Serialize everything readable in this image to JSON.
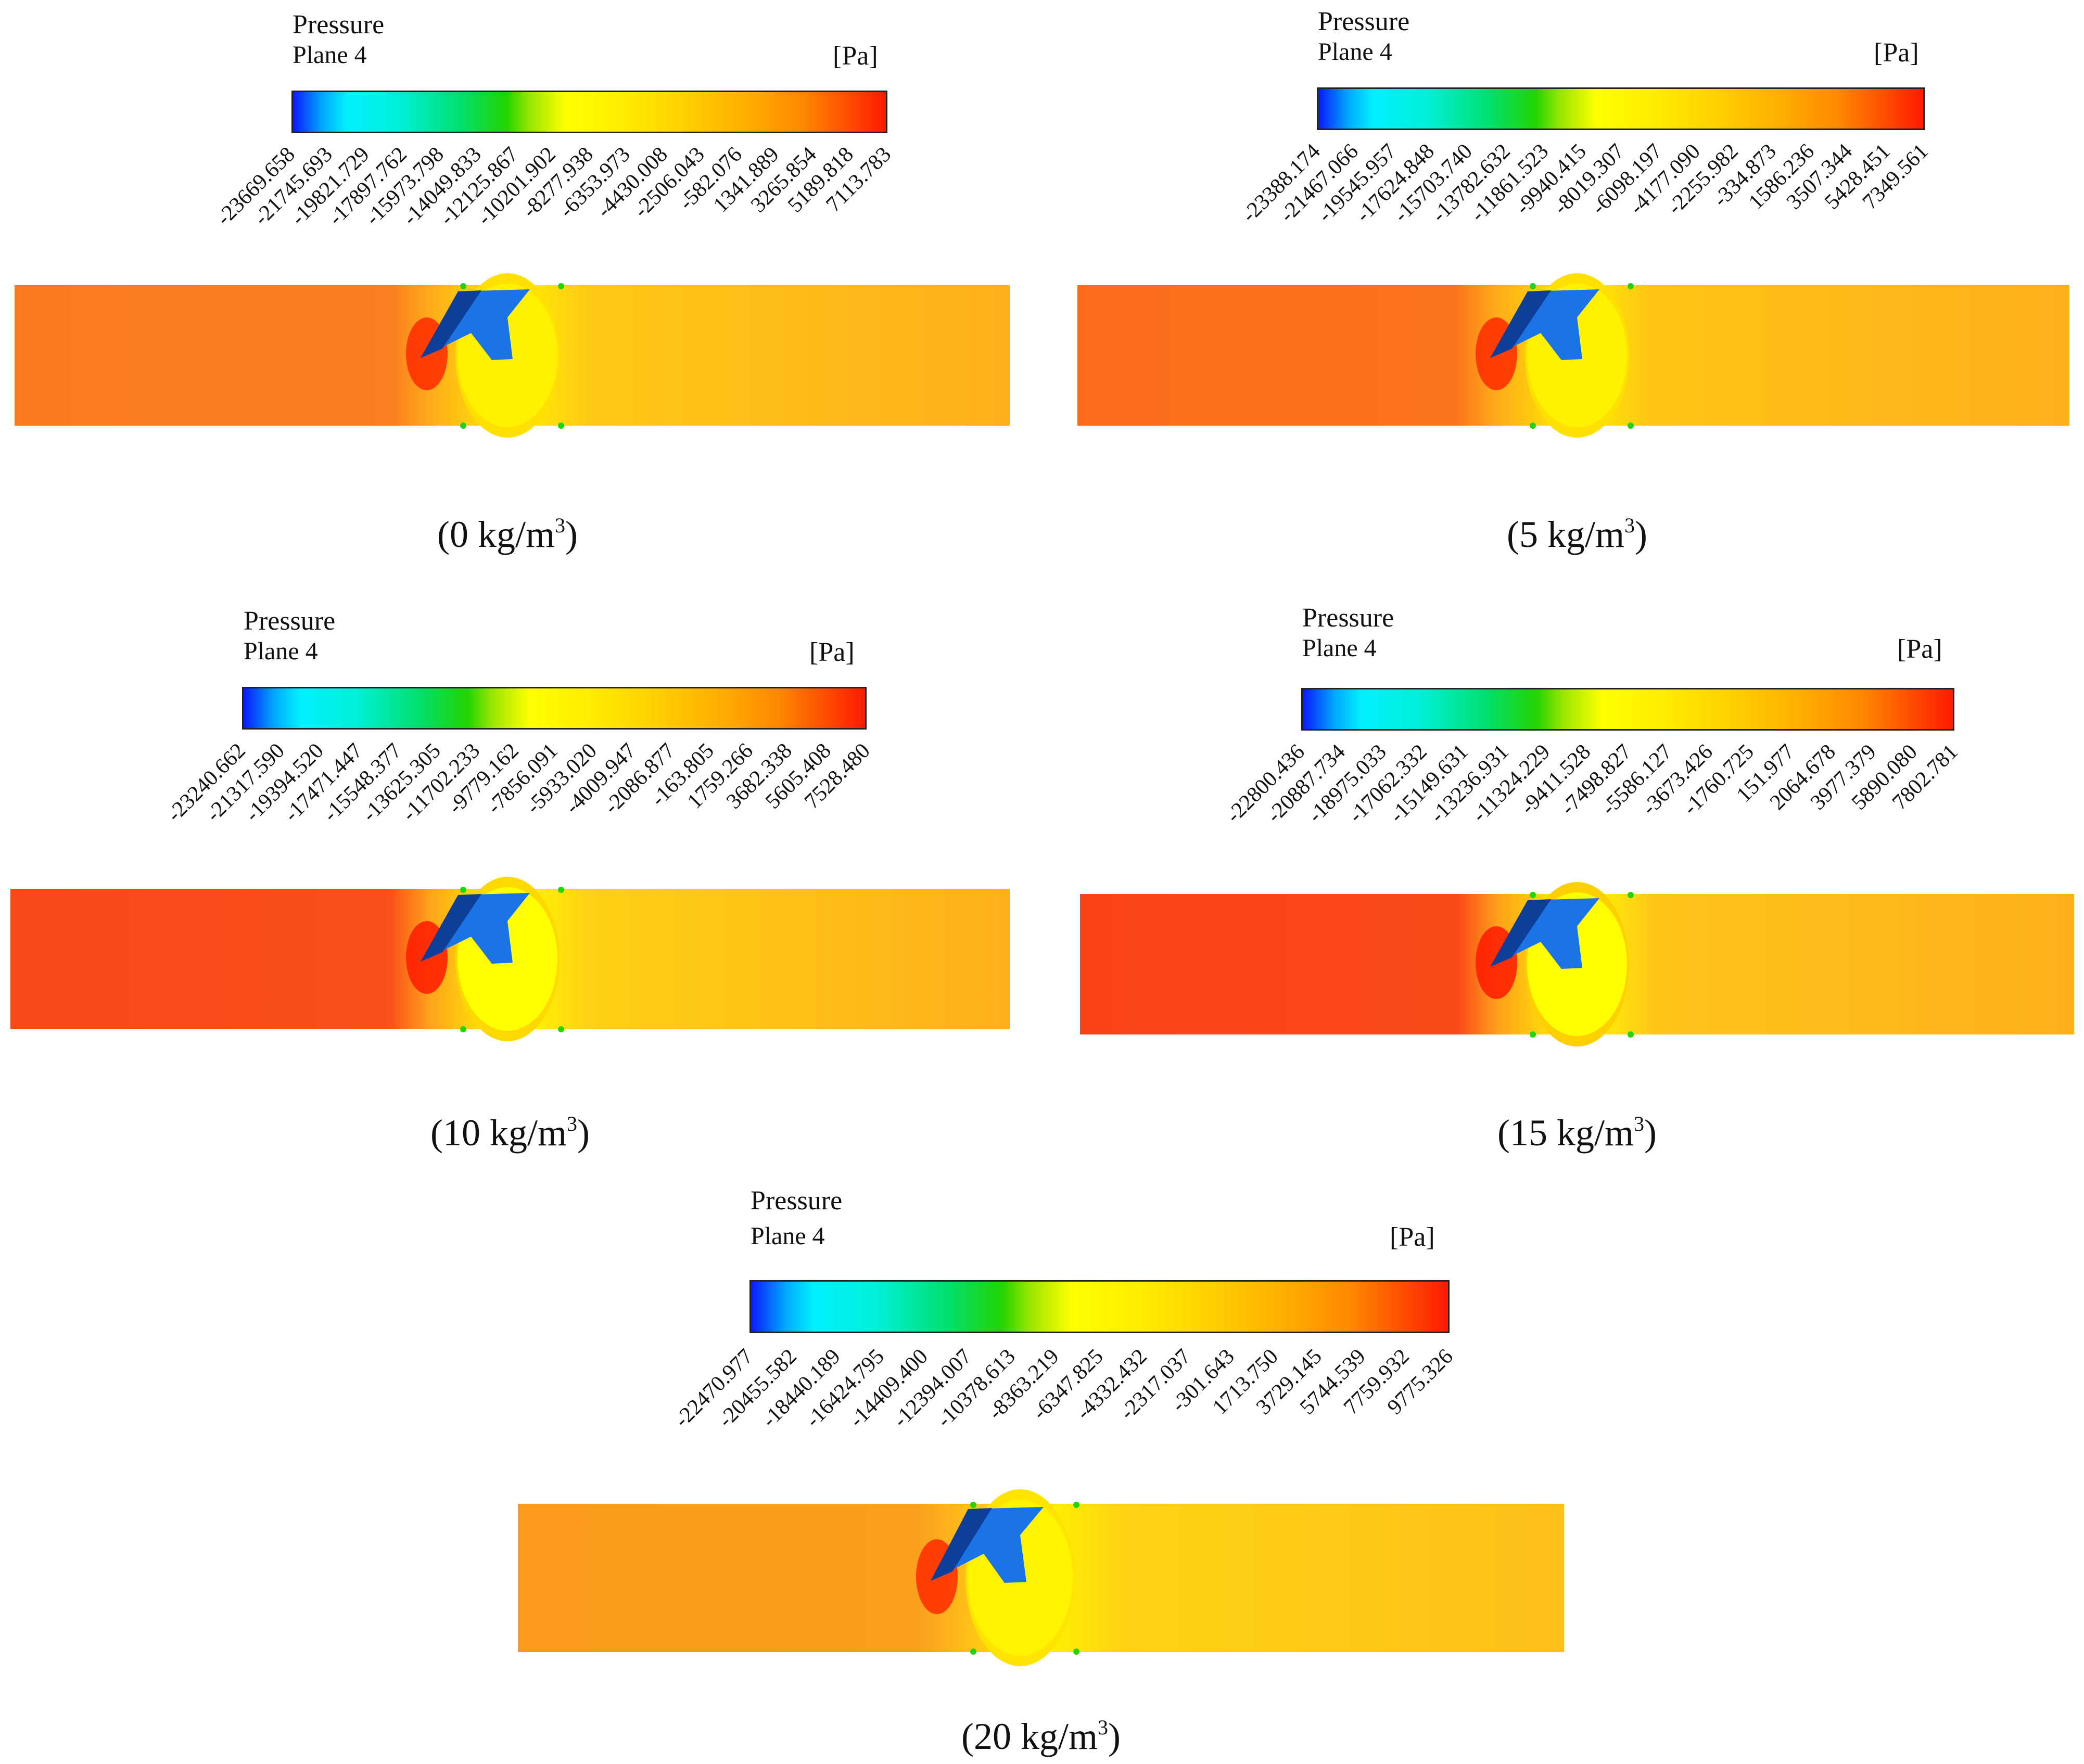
{
  "panels": [
    {
      "legend_title": "Pressure",
      "legend_plane": "Plane 4",
      "legend_unit": "[Pa]",
      "ticks": [
        "-23669.658",
        "-21745.693",
        "-19821.729",
        "-17897.762",
        "-15973.798",
        "-14049.833",
        "-12125.867",
        "-10201.902",
        "-8277.938",
        "-6353.973",
        "-4430.008",
        "-2506.043",
        "-582.076",
        "1341.889",
        "3265.854",
        "5189.818",
        "7113.783"
      ],
      "caption_main": "(0 kg/m",
      "caption_sup": "3",
      "caption_end": ")"
    },
    {
      "legend_title": "Pressure",
      "legend_plane": "Plane 4",
      "legend_unit": "[Pa]",
      "ticks": [
        "-23388.174",
        "-21467.066",
        "-19545.957",
        "-17624.848",
        "-15703.740",
        "-13782.632",
        "-11861.523",
        "-9940.415",
        "-8019.307",
        "-6098.197",
        "-4177.090",
        "-2255.982",
        "-334.873",
        "1586.236",
        "3507.344",
        "5428.451",
        "7349.561"
      ],
      "caption_main": "(5 kg/m",
      "caption_sup": "3",
      "caption_end": ")"
    },
    {
      "legend_title": "Pressure",
      "legend_plane": "Plane 4",
      "legend_unit": "[Pa]",
      "ticks": [
        "-23240.662",
        "-21317.590",
        "-19394.520",
        "-17471.447",
        "-15548.377",
        "-13625.305",
        "-11702.233",
        "-9779.162",
        "-7856.091",
        "-5933.020",
        "-4009.947",
        "-2086.877",
        "-163.805",
        "1759.266",
        "3682.338",
        "5605.408",
        "7528.480"
      ],
      "caption_main": "(10 kg/m",
      "caption_sup": "3",
      "caption_end": ")"
    },
    {
      "legend_title": "Pressure",
      "legend_plane": "Plane 4",
      "legend_unit": "[Pa]",
      "ticks": [
        "-22800.436",
        "-20887.734",
        "-18975.033",
        "-17062.332",
        "-15149.631",
        "-13236.931",
        "-11324.229",
        "-9411.528",
        "-7498.827",
        "-5586.127",
        "-3673.426",
        "-1760.725",
        "151.977",
        "2064.678",
        "3977.379",
        "5890.080",
        "7802.781"
      ],
      "caption_main": "(15 kg/m",
      "caption_sup": "3",
      "caption_end": ")"
    },
    {
      "legend_title": "Pressure",
      "legend_plane": "Plane 4",
      "legend_unit": "[Pa]",
      "ticks": [
        "-22470.977",
        "-20455.582",
        "-18440.189",
        "-16424.795",
        "-14409.400",
        "-12394.007",
        "-10378.613",
        "-8363.219",
        "-6347.825",
        "-4332.432",
        "-2317.037",
        "-301.643",
        "1713.750",
        "3729.145",
        "5744.539",
        "7759.932",
        "9775.326"
      ],
      "caption_main": "(20 kg/m",
      "caption_sup": "3",
      "caption_end": ")"
    }
  ],
  "colors": {
    "upstream_0": "#fb7a1e",
    "upstream_10": "#f9481a",
    "downstream": "#fdb01a",
    "high_pressure": "#ff1a00",
    "low_pressure_yellow": "#ffff00",
    "valve_blue": "#1a74e8"
  }
}
